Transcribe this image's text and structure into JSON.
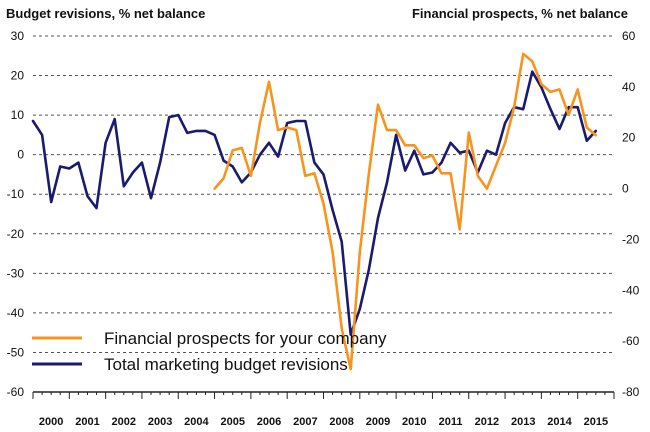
{
  "chart_data": {
    "type": "line",
    "title": "",
    "left_axis_title": "Budget revisions, % net balance",
    "right_axis_title": "Financial prospects, % net balance",
    "left_ylim": [
      -60,
      30
    ],
    "right_ylim": [
      -80,
      60
    ],
    "left_ticks": [
      "30",
      "20",
      "10",
      "0",
      "-10",
      "-20",
      "-30",
      "-40",
      "-50",
      "-60"
    ],
    "right_ticks": [
      "60",
      "40",
      "20",
      "0",
      "-20",
      "-40",
      "-60",
      "-80"
    ],
    "left_tick_values": [
      30,
      20,
      10,
      0,
      -10,
      -20,
      -30,
      -40,
      -50,
      -60
    ],
    "right_tick_values": [
      60,
      40,
      20,
      0,
      -20,
      -40,
      -60,
      -80
    ],
    "x_start": 2000,
    "x_end": 2016,
    "years": [
      "2000",
      "2001",
      "2002",
      "2003",
      "2004",
      "2005",
      "2006",
      "2007",
      "2008",
      "2009",
      "2010",
      "2011",
      "2012",
      "2013",
      "2014",
      "2015"
    ],
    "grid": true,
    "legend_position": "bottom-left",
    "colors": {
      "orange": "#f7941d",
      "navy": "#1a1a6e",
      "grid": "#555555"
    },
    "series": [
      {
        "name": "Financial prospects for your company",
        "axis": "right",
        "color": "#f7941d",
        "x": [
          2005.0,
          2005.25,
          2005.5,
          2005.75,
          2006.0,
          2006.25,
          2006.5,
          2006.75,
          2007.0,
          2007.25,
          2007.5,
          2007.75,
          2008.0,
          2008.25,
          2008.5,
          2008.75,
          2009.0,
          2009.25,
          2009.5,
          2009.75,
          2010.0,
          2010.25,
          2010.5,
          2010.75,
          2011.0,
          2011.25,
          2011.5,
          2011.75,
          2012.0,
          2012.25,
          2012.5,
          2012.75,
          2013.0,
          2013.25,
          2013.5,
          2013.75,
          2014.0,
          2014.25,
          2014.5,
          2014.75,
          2015.0,
          2015.25,
          2015.5
        ],
        "values": [
          0,
          4,
          15,
          16,
          5,
          26,
          42,
          23,
          24,
          23,
          5,
          6,
          -6,
          -25,
          -55,
          -71,
          -25,
          6,
          33,
          23,
          23,
          17,
          17,
          12,
          13,
          6,
          6,
          -16,
          22,
          5,
          0,
          9,
          18,
          32,
          53,
          50,
          41,
          38,
          39,
          29,
          39,
          24,
          21
        ]
      },
      {
        "name": "Total marketing budget revisions",
        "axis": "left",
        "color": "#1a1a6e",
        "x": [
          2000.0,
          2000.25,
          2000.5,
          2000.75,
          2001.0,
          2001.25,
          2001.5,
          2001.75,
          2002.0,
          2002.25,
          2002.5,
          2002.75,
          2003.0,
          2003.25,
          2003.5,
          2003.75,
          2004.0,
          2004.25,
          2004.5,
          2004.75,
          2005.0,
          2005.25,
          2005.5,
          2005.75,
          2006.0,
          2006.25,
          2006.5,
          2006.75,
          2007.0,
          2007.25,
          2007.5,
          2007.75,
          2008.0,
          2008.25,
          2008.5,
          2008.75,
          2009.0,
          2009.25,
          2009.5,
          2009.75,
          2010.0,
          2010.25,
          2010.5,
          2010.75,
          2011.0,
          2011.25,
          2011.5,
          2011.75,
          2012.0,
          2012.25,
          2012.5,
          2012.75,
          2013.0,
          2013.25,
          2013.5,
          2013.75,
          2014.0,
          2014.25,
          2014.5,
          2014.75,
          2015.0,
          2015.25,
          2015.5
        ],
        "values": [
          8.5,
          5,
          -12,
          -3,
          -3.5,
          -2,
          -10.5,
          -13.5,
          3,
          9,
          -8,
          -4.5,
          -2,
          -11,
          -2,
          9.5,
          10,
          5.5,
          6,
          6,
          5,
          -1.5,
          -3,
          -7,
          -4.5,
          0,
          3,
          -0.5,
          8,
          8.5,
          8.5,
          -2,
          -5,
          -14,
          -22,
          -45.5,
          -39,
          -29,
          -16,
          -7,
          5,
          -4,
          1,
          -5,
          -4.5,
          -2,
          3,
          0.5,
          1,
          -4.5,
          1,
          0,
          8,
          12,
          11.5,
          21,
          17,
          11.5,
          6.5,
          12,
          12,
          3.5,
          6
        ]
      }
    ]
  }
}
